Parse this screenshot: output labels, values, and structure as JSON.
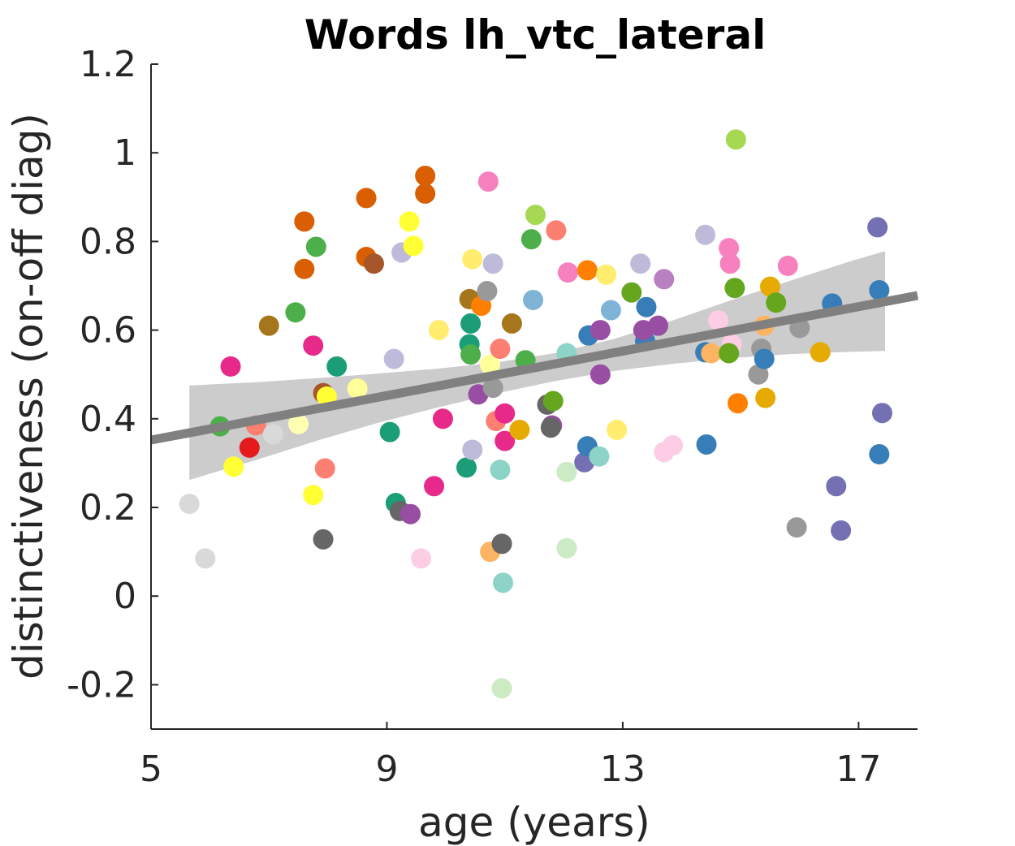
{
  "chart_data": {
    "type": "scatter",
    "title": "Words lh_vtc_lateral",
    "xlabel": "age (years)",
    "ylabel": "distinctiveness (on-off diag)",
    "xlim": [
      5,
      18.0
    ],
    "ylim": [
      -0.3,
      1.2
    ],
    "xticks": [
      5,
      9,
      13,
      17
    ],
    "xtick_labels": [
      "5",
      "9",
      "13",
      "17"
    ],
    "yticks": [
      -0.2,
      0,
      0.2,
      0.4,
      0.6,
      0.8,
      1.0,
      1.2
    ],
    "ytick_labels": [
      "-0.2",
      "0",
      "0.2",
      "0.4",
      "0.6",
      "0.8",
      "1",
      "1.2"
    ],
    "grid": false,
    "legend": "none",
    "fit_line": {
      "x": [
        5.0,
        18.0
      ],
      "y": [
        0.352,
        0.678
      ],
      "color": "#808080"
    },
    "confidence_band": {
      "x": [
        5.65,
        6.85,
        7.85,
        8.85,
        9.85,
        10.85,
        11.85,
        12.85,
        13.85,
        14.85,
        15.85,
        16.85,
        17.45
      ],
      "upper": [
        0.475,
        0.483,
        0.492,
        0.502,
        0.513,
        0.527,
        0.548,
        0.58,
        0.622,
        0.668,
        0.712,
        0.755,
        0.778
      ],
      "lower": [
        0.262,
        0.31,
        0.352,
        0.391,
        0.425,
        0.457,
        0.485,
        0.508,
        0.524,
        0.537,
        0.546,
        0.551,
        0.553
      ],
      "color": "#cccccc"
    },
    "points": [
      {
        "x": 5.65,
        "y": 0.208,
        "color": "#d9d9d9"
      },
      {
        "x": 5.92,
        "y": 0.085,
        "color": "#d9d9d9"
      },
      {
        "x": 6.17,
        "y": 0.383,
        "color": "#4daf4a"
      },
      {
        "x": 6.35,
        "y": 0.518,
        "color": "#e7298a"
      },
      {
        "x": 6.4,
        "y": 0.292,
        "color": "#ffff33"
      },
      {
        "x": 6.67,
        "y": 0.335,
        "color": "#e41a1c"
      },
      {
        "x": 6.78,
        "y": 0.385,
        "color": "#fb8072"
      },
      {
        "x": 7.0,
        "y": 0.61,
        "color": "#a6761d"
      },
      {
        "x": 7.07,
        "y": 0.365,
        "color": "#d9d9d9"
      },
      {
        "x": 7.45,
        "y": 0.64,
        "color": "#4daf4a"
      },
      {
        "x": 7.5,
        "y": 0.388,
        "color": "#ffffb3"
      },
      {
        "x": 7.6,
        "y": 0.845,
        "color": "#d95f02"
      },
      {
        "x": 7.6,
        "y": 0.738,
        "color": "#d95f02"
      },
      {
        "x": 7.75,
        "y": 0.565,
        "color": "#e7298a"
      },
      {
        "x": 7.8,
        "y": 0.788,
        "color": "#4daf4a"
      },
      {
        "x": 7.75,
        "y": 0.228,
        "color": "#ffff33"
      },
      {
        "x": 7.92,
        "y": 0.128,
        "color": "#666666"
      },
      {
        "x": 7.95,
        "y": 0.288,
        "color": "#fb8072"
      },
      {
        "x": 7.92,
        "y": 0.458,
        "color": "#a65628"
      },
      {
        "x": 7.98,
        "y": 0.45,
        "color": "#ffff33"
      },
      {
        "x": 8.15,
        "y": 0.518,
        "color": "#1b9e77"
      },
      {
        "x": 8.5,
        "y": 0.468,
        "color": "#ffff99"
      },
      {
        "x": 8.65,
        "y": 0.898,
        "color": "#d95f02"
      },
      {
        "x": 8.65,
        "y": 0.765,
        "color": "#d95f02"
      },
      {
        "x": 8.78,
        "y": 0.75,
        "color": "#a65628"
      },
      {
        "x": 9.05,
        "y": 0.37,
        "color": "#1b9e77"
      },
      {
        "x": 9.12,
        "y": 0.535,
        "color": "#bebada"
      },
      {
        "x": 9.15,
        "y": 0.21,
        "color": "#1b9e77"
      },
      {
        "x": 9.22,
        "y": 0.192,
        "color": "#666666"
      },
      {
        "x": 9.25,
        "y": 0.775,
        "color": "#bebada"
      },
      {
        "x": 9.4,
        "y": 0.185,
        "color": "#984ea3"
      },
      {
        "x": 9.38,
        "y": 0.845,
        "color": "#ffff33"
      },
      {
        "x": 9.45,
        "y": 0.79,
        "color": "#ffff33"
      },
      {
        "x": 9.58,
        "y": 0.085,
        "color": "#fccde5"
      },
      {
        "x": 9.65,
        "y": 0.948,
        "color": "#d95f02"
      },
      {
        "x": 9.65,
        "y": 0.908,
        "color": "#d95f02"
      },
      {
        "x": 9.8,
        "y": 0.248,
        "color": "#e7298a"
      },
      {
        "x": 9.88,
        "y": 0.6,
        "color": "#ffed6f"
      },
      {
        "x": 9.95,
        "y": 0.4,
        "color": "#e7298a"
      },
      {
        "x": 10.35,
        "y": 0.29,
        "color": "#1b9e77"
      },
      {
        "x": 10.4,
        "y": 0.67,
        "color": "#a6761d"
      },
      {
        "x": 10.42,
        "y": 0.615,
        "color": "#1b9e77"
      },
      {
        "x": 10.4,
        "y": 0.568,
        "color": "#1b9e77"
      },
      {
        "x": 10.42,
        "y": 0.545,
        "color": "#4daf4a"
      },
      {
        "x": 10.45,
        "y": 0.76,
        "color": "#ffed6f"
      },
      {
        "x": 10.45,
        "y": 0.33,
        "color": "#bebada"
      },
      {
        "x": 10.55,
        "y": 0.455,
        "color": "#984ea3"
      },
      {
        "x": 10.6,
        "y": 0.655,
        "color": "#ff7f00"
      },
      {
        "x": 10.7,
        "y": 0.688,
        "color": "#999999"
      },
      {
        "x": 10.72,
        "y": 0.935,
        "color": "#f781bf"
      },
      {
        "x": 10.75,
        "y": 0.522,
        "color": "#ffff99"
      },
      {
        "x": 10.8,
        "y": 0.75,
        "color": "#bebada"
      },
      {
        "x": 10.8,
        "y": 0.47,
        "color": "#999999"
      },
      {
        "x": 10.75,
        "y": 0.1,
        "color": "#fdb462"
      },
      {
        "x": 10.85,
        "y": 0.395,
        "color": "#fb8072"
      },
      {
        "x": 10.92,
        "y": 0.558,
        "color": "#fb8072"
      },
      {
        "x": 10.92,
        "y": 0.285,
        "color": "#8dd3c7"
      },
      {
        "x": 10.95,
        "y": -0.208,
        "color": "#ccebc5"
      },
      {
        "x": 10.95,
        "y": 0.118,
        "color": "#666666"
      },
      {
        "x": 10.97,
        "y": 0.03,
        "color": "#8dd3c7"
      },
      {
        "x": 11.0,
        "y": 0.412,
        "color": "#e7298a"
      },
      {
        "x": 11.0,
        "y": 0.35,
        "color": "#e7298a"
      },
      {
        "x": 11.12,
        "y": 0.615,
        "color": "#a6761d"
      },
      {
        "x": 11.25,
        "y": 0.375,
        "color": "#e6ab02"
      },
      {
        "x": 11.35,
        "y": 0.532,
        "color": "#4daf4a"
      },
      {
        "x": 11.45,
        "y": 0.805,
        "color": "#4daf4a"
      },
      {
        "x": 11.48,
        "y": 0.668,
        "color": "#7fb4d6"
      },
      {
        "x": 11.52,
        "y": 0.86,
        "color": "#a6d854"
      },
      {
        "x": 11.72,
        "y": 0.432,
        "color": "#666666"
      },
      {
        "x": 11.8,
        "y": 0.385,
        "color": "#984ea3"
      },
      {
        "x": 11.82,
        "y": 0.44,
        "color": "#66a61e"
      },
      {
        "x": 11.78,
        "y": 0.38,
        "color": "#666666"
      },
      {
        "x": 11.87,
        "y": 0.825,
        "color": "#fb8072"
      },
      {
        "x": 12.05,
        "y": 0.548,
        "color": "#8dd3c7"
      },
      {
        "x": 12.05,
        "y": 0.28,
        "color": "#ccebc5"
      },
      {
        "x": 12.05,
        "y": 0.108,
        "color": "#ccebc5"
      },
      {
        "x": 12.07,
        "y": 0.73,
        "color": "#f781bf"
      },
      {
        "x": 12.35,
        "y": 0.302,
        "color": "#7570b3"
      },
      {
        "x": 12.4,
        "y": 0.735,
        "color": "#ff7f00"
      },
      {
        "x": 12.4,
        "y": 0.338,
        "color": "#377eb8"
      },
      {
        "x": 12.42,
        "y": 0.588,
        "color": "#377eb8"
      },
      {
        "x": 12.6,
        "y": 0.315,
        "color": "#8dd3c7"
      },
      {
        "x": 12.62,
        "y": 0.6,
        "color": "#984ea3"
      },
      {
        "x": 12.62,
        "y": 0.5,
        "color": "#984ea3"
      },
      {
        "x": 12.72,
        "y": 0.725,
        "color": "#ffed6f"
      },
      {
        "x": 12.8,
        "y": 0.645,
        "color": "#7fb4d6"
      },
      {
        "x": 12.9,
        "y": 0.375,
        "color": "#ffed6f"
      },
      {
        "x": 13.15,
        "y": 0.685,
        "color": "#66a61e"
      },
      {
        "x": 13.3,
        "y": 0.75,
        "color": "#bebada"
      },
      {
        "x": 13.38,
        "y": 0.575,
        "color": "#377eb8"
      },
      {
        "x": 13.4,
        "y": 0.652,
        "color": "#377eb8"
      },
      {
        "x": 13.35,
        "y": 0.6,
        "color": "#984ea3"
      },
      {
        "x": 13.6,
        "y": 0.61,
        "color": "#984ea3"
      },
      {
        "x": 13.7,
        "y": 0.715,
        "color": "#b87fc1"
      },
      {
        "x": 13.7,
        "y": 0.325,
        "color": "#fccde5"
      },
      {
        "x": 13.85,
        "y": 0.34,
        "color": "#fccde5"
      },
      {
        "x": 14.4,
        "y": 0.815,
        "color": "#bebada"
      },
      {
        "x": 14.42,
        "y": 0.342,
        "color": "#377eb8"
      },
      {
        "x": 14.4,
        "y": 0.55,
        "color": "#377eb8"
      },
      {
        "x": 14.5,
        "y": 0.548,
        "color": "#fdb462"
      },
      {
        "x": 14.62,
        "y": 0.622,
        "color": "#fccde5"
      },
      {
        "x": 14.8,
        "y": 0.785,
        "color": "#f781bf"
      },
      {
        "x": 14.82,
        "y": 0.75,
        "color": "#f781bf"
      },
      {
        "x": 14.85,
        "y": 0.568,
        "color": "#fccde5"
      },
      {
        "x": 14.8,
        "y": 0.548,
        "color": "#66a61e"
      },
      {
        "x": 14.9,
        "y": 0.695,
        "color": "#66a61e"
      },
      {
        "x": 14.92,
        "y": 1.03,
        "color": "#a6d854"
      },
      {
        "x": 14.95,
        "y": 0.435,
        "color": "#ff7f00"
      },
      {
        "x": 15.3,
        "y": 0.5,
        "color": "#999999"
      },
      {
        "x": 15.35,
        "y": 0.558,
        "color": "#999999"
      },
      {
        "x": 15.4,
        "y": 0.61,
        "color": "#fdb462"
      },
      {
        "x": 15.4,
        "y": 0.535,
        "color": "#377eb8"
      },
      {
        "x": 15.42,
        "y": 0.447,
        "color": "#e6ab02"
      },
      {
        "x": 15.5,
        "y": 0.698,
        "color": "#e6ab02"
      },
      {
        "x": 15.6,
        "y": 0.662,
        "color": "#66a61e"
      },
      {
        "x": 15.8,
        "y": 0.745,
        "color": "#f781bf"
      },
      {
        "x": 15.95,
        "y": 0.155,
        "color": "#999999"
      },
      {
        "x": 16.0,
        "y": 0.605,
        "color": "#999999"
      },
      {
        "x": 16.35,
        "y": 0.55,
        "color": "#e6ab02"
      },
      {
        "x": 16.55,
        "y": 0.66,
        "color": "#377eb8"
      },
      {
        "x": 16.62,
        "y": 0.248,
        "color": "#7570b3"
      },
      {
        "x": 16.7,
        "y": 0.148,
        "color": "#7570b3"
      },
      {
        "x": 17.32,
        "y": 0.832,
        "color": "#7570b3"
      },
      {
        "x": 17.35,
        "y": 0.69,
        "color": "#377eb8"
      },
      {
        "x": 17.35,
        "y": 0.32,
        "color": "#377eb8"
      },
      {
        "x": 17.4,
        "y": 0.413,
        "color": "#7570b3"
      }
    ]
  }
}
